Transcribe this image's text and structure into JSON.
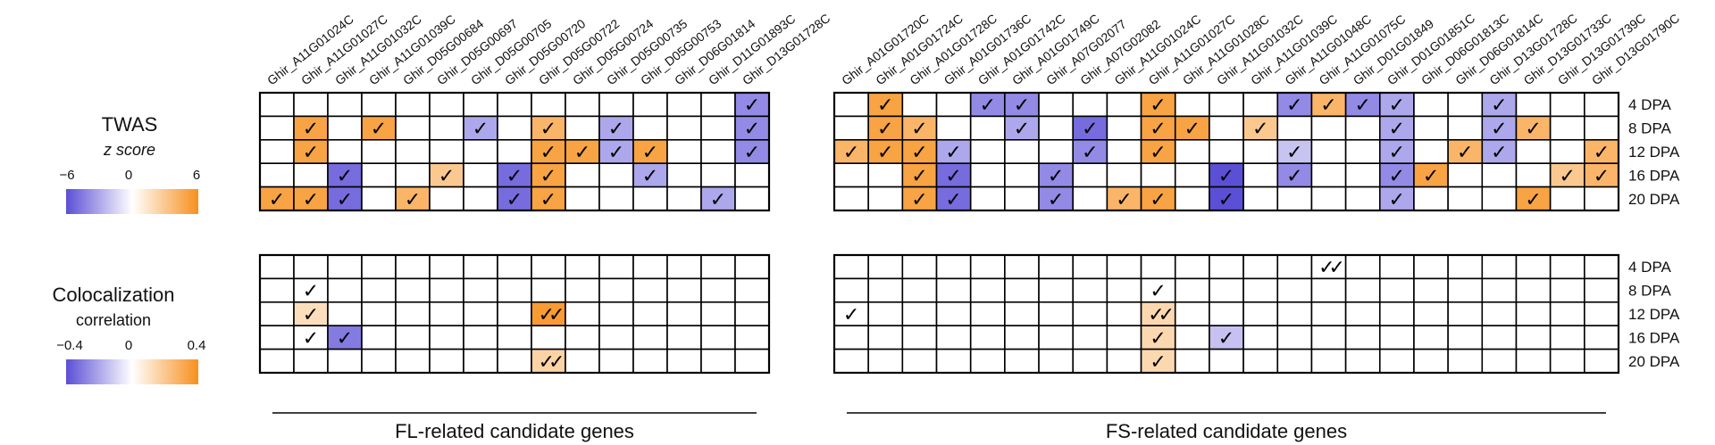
{
  "legend": {
    "twas_title": "TWAS",
    "twas_subtitle": "z score",
    "twas_ticks": [
      "−6",
      "0",
      "6"
    ],
    "coloc_title": "Colocalization",
    "coloc_subtitle": "correlation",
    "coloc_ticks": [
      "−0.4",
      "0",
      "0.4"
    ]
  },
  "colors": {
    "negative": "#5b4fd6",
    "zero": "#ffffff",
    "positive": "#f7901e"
  },
  "chart_data": {
    "type": "heatmap",
    "rows": [
      "4 DPA",
      "8 DPA",
      "12 DPA",
      "16 DPA",
      "20 DPA"
    ],
    "groups": [
      {
        "label": "FL-related candidate genes",
        "genes": [
          "Ghir_A11G01024C",
          "Ghir_A11G01027C",
          "Ghir_A11G01032C",
          "Ghir_A11G01039C",
          "Ghir_D05G00684",
          "Ghir_D05G00697",
          "Ghir_D05G00705",
          "Ghir_D05G00720",
          "Ghir_D05G00722",
          "Ghir_D05G00724",
          "Ghir_D05G00735",
          "Ghir_D05G00753",
          "Ghir_D06G01814",
          "Ghir_D11G01893C",
          "Ghir_D13G01728C"
        ],
        "twas": [
          [
            0,
            0,
            0,
            0,
            0,
            0,
            0,
            0,
            0,
            0,
            0,
            0,
            0,
            0,
            -4
          ],
          [
            0,
            5,
            0,
            5,
            0,
            0,
            -3,
            0,
            4,
            0,
            -3,
            0,
            0,
            0,
            -4
          ],
          [
            0,
            5,
            0,
            0,
            0,
            0,
            0,
            0,
            5,
            5,
            -3,
            5,
            0,
            0,
            -4
          ],
          [
            0,
            0,
            -5,
            0,
            0,
            3,
            0,
            -5,
            5,
            0,
            0,
            -3,
            0,
            0,
            0
          ],
          [
            5,
            5,
            -5,
            0,
            4,
            0,
            0,
            -5,
            5,
            0,
            0,
            0,
            0,
            -3,
            0
          ]
        ],
        "twas_marks": [
          [
            0,
            0,
            0,
            0,
            0,
            0,
            0,
            0,
            0,
            0,
            0,
            0,
            0,
            0,
            1
          ],
          [
            0,
            1,
            0,
            1,
            0,
            0,
            1,
            0,
            1,
            0,
            1,
            0,
            0,
            0,
            1
          ],
          [
            0,
            1,
            0,
            0,
            0,
            0,
            0,
            0,
            1,
            1,
            1,
            1,
            0,
            0,
            1
          ],
          [
            0,
            0,
            1,
            0,
            0,
            1,
            0,
            1,
            1,
            0,
            0,
            1,
            0,
            0,
            0
          ],
          [
            1,
            1,
            1,
            0,
            1,
            0,
            0,
            1,
            1,
            0,
            0,
            0,
            0,
            1,
            0
          ]
        ],
        "coloc": [
          [
            0,
            0,
            0,
            0,
            0,
            0,
            0,
            0,
            0,
            0,
            0,
            0,
            0,
            0,
            0
          ],
          [
            0,
            0,
            0,
            0,
            0,
            0,
            0,
            0,
            0,
            0,
            0,
            0,
            0,
            0,
            0
          ],
          [
            0,
            0.12,
            0,
            0,
            0,
            0,
            0,
            0,
            0.36,
            0,
            0,
            0,
            0,
            0,
            0
          ],
          [
            0,
            0,
            -0.3,
            0,
            0,
            0,
            0,
            0,
            0,
            0,
            0,
            0,
            0,
            0,
            0
          ],
          [
            0,
            0,
            0,
            0,
            0,
            0,
            0,
            0,
            0.16,
            0,
            0,
            0,
            0,
            0,
            0
          ]
        ],
        "coloc_marks": [
          [
            0,
            0,
            0,
            0,
            0,
            0,
            0,
            0,
            0,
            0,
            0,
            0,
            0,
            0,
            0
          ],
          [
            0,
            1,
            0,
            0,
            0,
            0,
            0,
            0,
            0,
            0,
            0,
            0,
            0,
            0,
            0
          ],
          [
            0,
            1,
            0,
            0,
            0,
            0,
            0,
            0,
            2,
            0,
            0,
            0,
            0,
            0,
            0
          ],
          [
            0,
            1,
            1,
            0,
            0,
            0,
            0,
            0,
            0,
            0,
            0,
            0,
            0,
            0,
            0
          ],
          [
            0,
            0,
            0,
            0,
            0,
            0,
            0,
            0,
            2,
            0,
            0,
            0,
            0,
            0,
            0
          ]
        ]
      },
      {
        "label": "FS-related candidate genes",
        "genes": [
          "Ghir_A01G01720C",
          "Ghir_A01G01724C",
          "Ghir_A01G01728C",
          "Ghir_A01G01736C",
          "Ghir_A01G01742C",
          "Ghir_A01G01749C",
          "Ghir_A07G02077",
          "Ghir_A07G02082",
          "Ghir_A11G01024C",
          "Ghir_A11G01027C",
          "Ghir_A11G01028C",
          "Ghir_A11G01032C",
          "Ghir_A11G01039C",
          "Ghir_A11G01048C",
          "Ghir_A11G01075C",
          "Ghir_D01G01849",
          "Ghir_D01G01851C",
          "Ghir_D06G01813C",
          "Ghir_D06G01814C",
          "Ghir_D13G01728C",
          "Ghir_D13G01733C",
          "Ghir_D13G01739C",
          "Ghir_D13G01790C"
        ],
        "twas": [
          [
            0,
            5,
            0,
            0,
            -4,
            -4,
            0,
            0,
            0,
            5,
            0,
            0,
            0,
            -4,
            4,
            -4,
            -3,
            0,
            0,
            -3,
            0,
            0,
            0
          ],
          [
            0,
            5,
            4,
            0,
            0,
            -3,
            0,
            -5,
            0,
            5,
            5,
            0,
            3,
            0,
            0,
            0,
            -3,
            0,
            0,
            -3,
            4,
            0,
            0
          ],
          [
            4,
            5,
            5,
            -3,
            0,
            0,
            0,
            -4,
            0,
            5,
            0,
            0,
            0,
            -2,
            0,
            0,
            -3,
            0,
            4,
            -3,
            0,
            0,
            4
          ],
          [
            0,
            0,
            5,
            -5,
            0,
            0,
            -4,
            0,
            0,
            0,
            0,
            -6,
            0,
            -4,
            0,
            0,
            -4,
            5,
            0,
            0,
            0,
            3,
            4
          ],
          [
            0,
            0,
            5,
            -5,
            0,
            0,
            -4,
            0,
            4,
            5,
            0,
            -6,
            0,
            0,
            0,
            0,
            -3,
            0,
            0,
            0,
            5,
            0,
            0
          ]
        ],
        "twas_marks": [
          [
            0,
            1,
            0,
            0,
            1,
            1,
            0,
            0,
            0,
            1,
            0,
            0,
            0,
            1,
            1,
            1,
            1,
            0,
            0,
            1,
            0,
            0,
            0
          ],
          [
            0,
            1,
            1,
            0,
            0,
            1,
            0,
            1,
            0,
            1,
            1,
            0,
            1,
            0,
            0,
            0,
            1,
            0,
            0,
            1,
            1,
            0,
            0
          ],
          [
            1,
            1,
            1,
            1,
            0,
            0,
            0,
            1,
            0,
            1,
            0,
            0,
            0,
            1,
            0,
            0,
            1,
            0,
            1,
            1,
            0,
            0,
            1
          ],
          [
            0,
            0,
            1,
            1,
            0,
            0,
            1,
            0,
            0,
            0,
            0,
            1,
            0,
            1,
            0,
            0,
            1,
            1,
            0,
            0,
            0,
            1,
            1
          ],
          [
            0,
            0,
            1,
            1,
            0,
            0,
            1,
            0,
            1,
            1,
            0,
            1,
            0,
            0,
            0,
            0,
            1,
            0,
            0,
            0,
            1,
            0,
            0
          ]
        ],
        "coloc": [
          [
            0,
            0,
            0,
            0,
            0,
            0,
            0,
            0,
            0,
            0,
            0,
            0,
            0,
            0,
            0,
            0,
            0,
            0,
            0,
            0,
            0,
            0,
            0
          ],
          [
            0,
            0,
            0,
            0,
            0,
            0,
            0,
            0,
            0,
            0,
            0,
            0,
            0,
            0,
            0,
            0,
            0,
            0,
            0,
            0,
            0,
            0,
            0
          ],
          [
            0,
            0,
            0,
            0,
            0,
            0,
            0,
            0,
            0,
            0.14,
            0,
            0,
            0,
            0,
            0,
            0,
            0,
            0,
            0,
            0,
            0,
            0,
            0
          ],
          [
            0,
            0,
            0,
            0,
            0,
            0,
            0,
            0,
            0,
            0.14,
            0,
            -0.14,
            0,
            0,
            0,
            0,
            0,
            0,
            0,
            0,
            0,
            0,
            0
          ],
          [
            0,
            0,
            0,
            0,
            0,
            0,
            0,
            0,
            0,
            0.14,
            0,
            0,
            0,
            0,
            0,
            0,
            0,
            0,
            0,
            0,
            0,
            0,
            0
          ]
        ],
        "coloc_marks": [
          [
            0,
            0,
            0,
            0,
            0,
            0,
            0,
            0,
            0,
            0,
            0,
            0,
            0,
            0,
            2,
            0,
            0,
            0,
            0,
            0,
            0,
            0,
            0
          ],
          [
            0,
            0,
            0,
            0,
            0,
            0,
            0,
            0,
            0,
            1,
            0,
            0,
            0,
            0,
            0,
            0,
            0,
            0,
            0,
            0,
            0,
            0,
            0
          ],
          [
            1,
            0,
            0,
            0,
            0,
            0,
            0,
            0,
            0,
            2,
            0,
            0,
            0,
            0,
            0,
            0,
            0,
            0,
            0,
            0,
            0,
            0,
            0
          ],
          [
            0,
            0,
            0,
            0,
            0,
            0,
            0,
            0,
            0,
            1,
            0,
            1,
            0,
            0,
            0,
            0,
            0,
            0,
            0,
            0,
            0,
            0,
            0
          ],
          [
            0,
            0,
            0,
            0,
            0,
            0,
            0,
            0,
            0,
            1,
            0,
            0,
            0,
            0,
            0,
            0,
            0,
            0,
            0,
            0,
            0,
            0,
            0
          ]
        ]
      }
    ],
    "twas_range": [
      -6,
      6
    ],
    "coloc_range": [
      -0.4,
      0.4
    ]
  }
}
